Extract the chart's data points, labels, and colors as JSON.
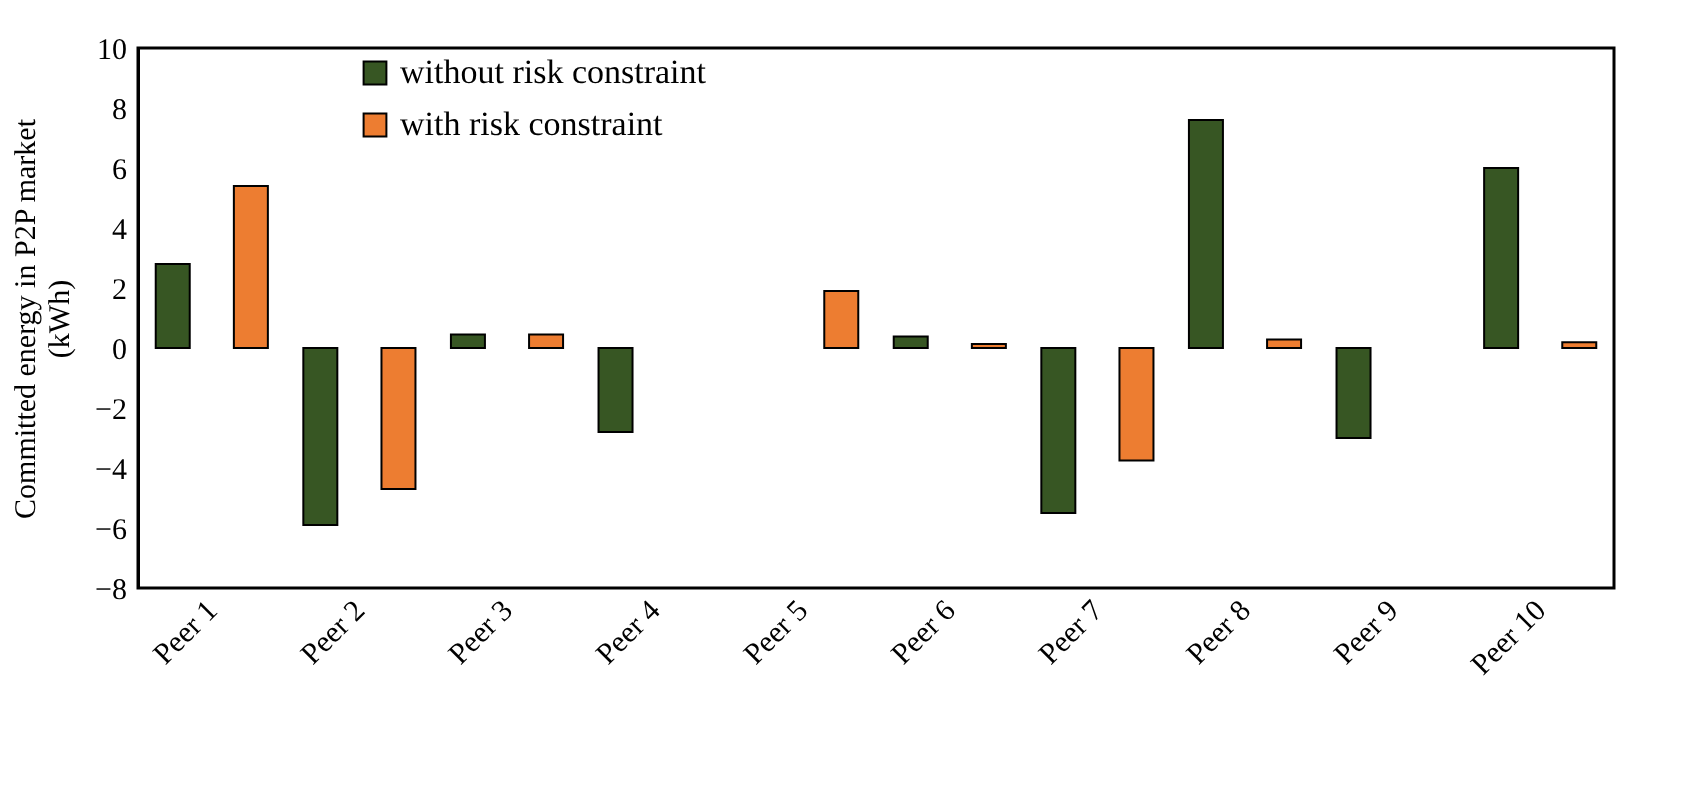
{
  "chart_data": {
    "type": "bar",
    "ylabel": "Committed energy in P2P market\n(kWh)",
    "categories": [
      "Peer 1",
      "Peer 2",
      "Peer 3",
      "Peer 4",
      "Peer 5",
      "Peer 6",
      "Peer 7",
      "Peer 8",
      "Peer 9",
      "Peer 10"
    ],
    "series": [
      {
        "name": "without risk constraint",
        "color": "#375623",
        "values": [
          2.8,
          -5.9,
          0.45,
          -2.8,
          null,
          0.38,
          -5.5,
          7.6,
          -3.0,
          6.0
        ]
      },
      {
        "name": "with risk constraint",
        "color": "#ed7d31",
        "values": [
          5.4,
          -4.7,
          0.45,
          null,
          1.9,
          0.13,
          -3.75,
          0.28,
          null,
          0.19
        ]
      }
    ],
    "ylim": [
      -8,
      10
    ],
    "yticks": [
      -8,
      -6,
      -4,
      -2,
      0,
      2,
      4,
      6,
      8,
      10
    ],
    "grid": false,
    "legend": "top left"
  }
}
